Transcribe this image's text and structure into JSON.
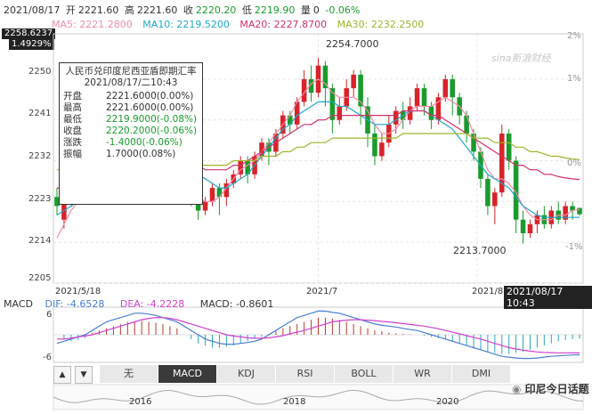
{
  "header": {
    "date": "2021/08/17",
    "open_label": "开",
    "open": "2221.60",
    "high_label": "高",
    "high": "2221.60",
    "close_label": "收",
    "close": "2220.20",
    "low_label": "低",
    "low": "2219.90",
    "vol_label": "量",
    "vol": "0",
    "change": "-0.06%"
  },
  "ma": [
    {
      "label": "MA5: 2221.2800",
      "color": "#f08ca8"
    },
    {
      "label": "MA10: 2219.5200",
      "color": "#1fa8c8"
    },
    {
      "label": "MA20: 2227.8700",
      "color": "#d0306a"
    },
    {
      "label": "MA30: 2232.2500",
      "color": "#9ab82a"
    }
  ],
  "price_badge": {
    "value": "2258.6237",
    "pct": "1.4929%"
  },
  "tooltip": {
    "title": "人民币兑印度尼西亚盾即期汇率",
    "datetime": "2021/08/17/二10:43",
    "rows": [
      {
        "k": "开盘",
        "v": "2221.6000(0.00%)",
        "color": "#333"
      },
      {
        "k": "最高",
        "v": "2221.6000(0.00%)",
        "color": "#333"
      },
      {
        "k": "最低",
        "v": "2219.9000(-0.08%)",
        "color": "#1a9b2c"
      },
      {
        "k": "收盘",
        "v": "2220.2000(-0.06%)",
        "color": "#1a9b2c"
      },
      {
        "k": "涨跌",
        "v": "-1.4000(-0.06%)",
        "color": "#1a9b2c"
      },
      {
        "k": "振幅",
        "v": "1.7000(0.08%)",
        "color": "#333"
      }
    ]
  },
  "annotations": {
    "high": "2254.7000",
    "low": "2213.7000"
  },
  "x_labels": {
    "left": "2021/5/18",
    "mid": "2021/7",
    "right": "2021/8"
  },
  "time_badge": "2021/08/17 10:43",
  "macd": {
    "title": "MACD",
    "dif": "DIF: -4.6528",
    "dea": "DEA: -4.2228",
    "macd": "MACD: -0.8601",
    "ticks": [
      "6",
      "-6"
    ]
  },
  "tabs": [
    "无",
    "MACD",
    "KDJ",
    "RSI",
    "BOLL",
    "WR",
    "DMI"
  ],
  "active_tab": "MACD",
  "nav_labels": [
    "2016",
    "2018",
    "2020"
  ],
  "watermark_logo": "sina新浪财经",
  "wechat_label": "印尼今日话题",
  "chart_data": {
    "type": "candlestick",
    "ylim": [
      2205,
      2260
    ],
    "y_ticks": [
      2205,
      2214,
      2223,
      2232,
      2241,
      2250
    ],
    "right_ticks": [
      "2%",
      "1%",
      "0%",
      "-1%"
    ],
    "candles": [
      [
        2224,
        2222,
        2226,
        2220
      ],
      [
        2219,
        2225,
        2227,
        2217
      ],
      [
        2225,
        2224,
        2226,
        2222
      ],
      [
        2224,
        2226,
        2227,
        2223
      ],
      [
        2226,
        2228,
        2229,
        2225
      ],
      [
        2228,
        2230,
        2231,
        2227
      ],
      [
        2230,
        2232,
        2233,
        2229
      ],
      [
        2232,
        2230,
        2233,
        2228
      ],
      [
        2230,
        2233,
        2234,
        2229
      ],
      [
        2233,
        2234,
        2235,
        2232
      ],
      [
        2234,
        2233,
        2236,
        2232
      ],
      [
        2233,
        2235,
        2236,
        2232
      ],
      [
        2235,
        2237,
        2238,
        2234
      ],
      [
        2237,
        2236,
        2238,
        2235
      ],
      [
        2236,
        2238,
        2239,
        2235
      ],
      [
        2238,
        2236,
        2239,
        2234
      ],
      [
        2236,
        2235,
        2237,
        2234
      ],
      [
        2235,
        2231,
        2236,
        2229
      ],
      [
        2231,
        2228,
        2232,
        2226
      ],
      [
        2228,
        2224,
        2229,
        2222
      ],
      [
        2224,
        2221,
        2225,
        2219
      ],
      [
        2221,
        2223,
        2224,
        2220
      ],
      [
        2223,
        2226,
        2227,
        2222
      ],
      [
        2226,
        2224,
        2227,
        2220
      ],
      [
        2224,
        2227,
        2228,
        2222
      ],
      [
        2227,
        2229,
        2230,
        2226
      ],
      [
        2229,
        2232,
        2233,
        2228
      ],
      [
        2232,
        2229,
        2233,
        2227
      ],
      [
        2229,
        2233,
        2234,
        2228
      ],
      [
        2233,
        2236,
        2237,
        2232
      ],
      [
        2236,
        2234,
        2237,
        2231
      ],
      [
        2234,
        2238,
        2239,
        2233
      ],
      [
        2238,
        2242,
        2243,
        2237
      ],
      [
        2242,
        2240,
        2243,
        2238
      ],
      [
        2240,
        2245,
        2246,
        2239
      ],
      [
        2245,
        2250,
        2252,
        2244
      ],
      [
        2250,
        2247,
        2253,
        2245
      ],
      [
        2247,
        2253,
        2254.7,
        2246
      ],
      [
        2253,
        2248,
        2254,
        2244
      ],
      [
        2248,
        2241,
        2249,
        2238
      ],
      [
        2241,
        2244,
        2246,
        2240
      ],
      [
        2244,
        2248,
        2250,
        2243
      ],
      [
        2248,
        2251,
        2252,
        2246
      ],
      [
        2251,
        2244,
        2252,
        2240
      ],
      [
        2244,
        2238,
        2246,
        2235
      ],
      [
        2238,
        2233,
        2240,
        2231
      ],
      [
        2233,
        2236,
        2238,
        2232
      ],
      [
        2236,
        2240,
        2242,
        2235
      ],
      [
        2240,
        2243,
        2244,
        2238
      ],
      [
        2243,
        2241,
        2245,
        2239
      ],
      [
        2241,
        2244,
        2246,
        2240
      ],
      [
        2244,
        2248,
        2249,
        2243
      ],
      [
        2248,
        2244,
        2249,
        2242
      ],
      [
        2244,
        2241,
        2245,
        2239
      ],
      [
        2241,
        2246,
        2247,
        2240
      ],
      [
        2246,
        2250,
        2251,
        2245
      ],
      [
        2250,
        2246,
        2251,
        2242
      ],
      [
        2246,
        2242,
        2247,
        2240
      ],
      [
        2242,
        2238,
        2243,
        2236
      ],
      [
        2238,
        2234,
        2239,
        2232
      ],
      [
        2234,
        2228,
        2235,
        2226
      ],
      [
        2228,
        2222,
        2229,
        2220
      ],
      [
        2222,
        2225,
        2226,
        2218
      ],
      [
        2225,
        2238,
        2240,
        2224
      ],
      [
        2238,
        2232,
        2239,
        2230
      ],
      [
        2232,
        2219,
        2233,
        2216
      ],
      [
        2219,
        2216,
        2221,
        2213.7
      ],
      [
        2216,
        2218,
        2219,
        2215
      ],
      [
        2218,
        2220,
        2221,
        2216
      ],
      [
        2220,
        2218,
        2222,
        2217
      ],
      [
        2218,
        2221,
        2222,
        2217
      ],
      [
        2221,
        2219,
        2223,
        2218
      ],
      [
        2219,
        2222,
        2223,
        2218
      ],
      [
        2222,
        2221,
        2223,
        2219
      ],
      [
        2221.6,
        2220.2,
        2221.6,
        2219.9
      ]
    ],
    "ma5": [
      2215,
      2218,
      2221,
      2223,
      2225,
      2227,
      2229,
      2230,
      2231,
      2232,
      2233,
      2234,
      2235,
      2236,
      2236,
      2236,
      2235,
      2233,
      2230,
      2227,
      2224,
      2223,
      2223,
      2224,
      2226,
      2228,
      2230,
      2231,
      2232,
      2234,
      2236,
      2238,
      2240,
      2242,
      2245,
      2247,
      2249,
      2250,
      2249,
      2247,
      2246,
      2246,
      2246,
      2245,
      2243,
      2240,
      2238,
      2238,
      2239,
      2241,
      2243,
      2244,
      2244,
      2244,
      2245,
      2246,
      2245,
      2244,
      2242,
      2238,
      2234,
      2230,
      2228,
      2228,
      2227,
      2225,
      2222,
      2220,
      2219,
      2219,
      2219,
      2220,
      2220,
      2221,
      2221.28
    ],
    "ma10": [
      2220,
      2221,
      2222,
      2223,
      2224,
      2225,
      2226,
      2227,
      2228,
      2229,
      2230,
      2231,
      2232,
      2233,
      2234,
      2234,
      2234,
      2234,
      2233,
      2231,
      2229,
      2228,
      2227,
      2226,
      2226,
      2227,
      2228,
      2229,
      2231,
      2233,
      2235,
      2237,
      2239,
      2240,
      2242,
      2243,
      2244,
      2245,
      2245,
      2245,
      2244,
      2244,
      2243,
      2242,
      2241,
      2240,
      2240,
      2240,
      2241,
      2242,
      2243,
      2243,
      2243,
      2242,
      2241,
      2240,
      2239,
      2237,
      2235,
      2233,
      2231,
      2229,
      2228,
      2227,
      2226,
      2224,
      2222,
      2221,
      2220,
      2219.5,
      2219.5,
      2219.5,
      2219.5,
      2219.5,
      2219.52
    ],
    "ma20": [
      2226,
      2226,
      2227,
      2227,
      2228,
      2228,
      2229,
      2229,
      2230,
      2230,
      2231,
      2231,
      2232,
      2232,
      2232,
      2232,
      2232,
      2232,
      2232,
      2231,
      2231,
      2230,
      2230,
      2230,
      2230,
      2231,
      2231,
      2232,
      2233,
      2234,
      2235,
      2236,
      2237,
      2238,
      2239,
      2240,
      2240,
      2241,
      2241,
      2242,
      2242,
      2242,
      2242,
      2242,
      2242,
      2242,
      2242,
      2242,
      2242,
      2243,
      2243,
      2243,
      2243,
      2242,
      2242,
      2241,
      2240,
      2239,
      2238,
      2237,
      2236,
      2235,
      2234,
      2233,
      2232,
      2231,
      2231,
      2230,
      2230,
      2229,
      2229,
      2228.5,
      2228.2,
      2228,
      2227.87
    ],
    "ma30": [
      2230,
      2230,
      2230,
      2230,
      2230,
      2230,
      2231,
      2231,
      2231,
      2231,
      2231,
      2231,
      2231,
      2231,
      2231,
      2231,
      2231,
      2231,
      2231,
      2231,
      2231,
      2231,
      2231,
      2231,
      2231,
      2232,
      2232,
      2232,
      2232,
      2233,
      2233,
      2233,
      2234,
      2234,
      2235,
      2235,
      2236,
      2236,
      2236,
      2237,
      2237,
      2237,
      2237,
      2237,
      2237,
      2237,
      2237,
      2237,
      2237,
      2238,
      2238,
      2238,
      2238,
      2238,
      2238,
      2238,
      2238,
      2238,
      2238,
      2237,
      2237,
      2237,
      2236,
      2236,
      2236,
      2235,
      2235,
      2234,
      2234,
      2233.5,
      2233,
      2233,
      2232.6,
      2232.4,
      2232.25
    ],
    "macd_ylim": [
      -6,
      6
    ],
    "macd_bars": [
      0,
      -1,
      -1.5,
      -1.2,
      -0.8,
      0.5,
      1,
      1.5,
      2,
      2.5,
      3,
      3,
      3.2,
      3,
      2.8,
      2.5,
      2,
      1.5,
      0,
      -1,
      -2,
      -2.5,
      -3,
      -3,
      -2.8,
      -2.5,
      -2,
      -1.5,
      -1,
      -0.5,
      0.2,
      0.8,
      1.5,
      2,
      2.5,
      3,
      3.5,
      4,
      4,
      3.8,
      3.5,
      3,
      2.5,
      2,
      1.5,
      1,
      0.8,
      0.5,
      0.3,
      0.2,
      0.1,
      0,
      -0.2,
      -0.5,
      -0.8,
      -1,
      -1.5,
      -2,
      -2.5,
      -3,
      -3.5,
      -4,
      -4.2,
      -4.5,
      -4.5,
      -4.2,
      -4,
      -3.5,
      -3,
      -2.5,
      -2,
      -1.5,
      -1.2,
      -1,
      -0.86
    ],
    "dif": [
      -2,
      -1.5,
      -1,
      -0.5,
      0,
      1,
      2,
      3,
      3.5,
      4,
      4.5,
      5,
      5,
      4.8,
      4.5,
      4,
      3.5,
      3,
      2,
      1,
      0,
      -1,
      -1.5,
      -2,
      -2.2,
      -2.2,
      -2,
      -1.8,
      -1.5,
      -1,
      0,
      1,
      2,
      3,
      4,
      4.5,
      5,
      5.5,
      5.5,
      5.2,
      5,
      4.5,
      4,
      3.5,
      3,
      2.5,
      2.2,
      2,
      1.8,
      1.5,
      1.2,
      1,
      0.5,
      0,
      -0.5,
      -1,
      -1.5,
      -2,
      -2.5,
      -3,
      -3.5,
      -4,
      -4.5,
      -5,
      -5.2,
      -5.4,
      -5.5,
      -5.5,
      -5.4,
      -5.2,
      -5,
      -4.9,
      -4.8,
      -4.7,
      -4.6528
    ],
    "dea": [
      -1,
      -1,
      -0.8,
      -0.5,
      -0.3,
      0,
      0.5,
      1,
      1.5,
      2,
      2.5,
      3,
      3.5,
      3.8,
      4,
      4,
      3.8,
      3.5,
      3,
      2.5,
      2,
      1.5,
      1,
      0.5,
      0,
      -0.3,
      -0.5,
      -0.7,
      -0.8,
      -0.8,
      -0.7,
      -0.5,
      -0.2,
      0.2,
      0.6,
      1,
      1.5,
      2,
      2.5,
      3,
      3.2,
      3.4,
      3.5,
      3.5,
      3.4,
      3.3,
      3.1,
      3,
      2.8,
      2.6,
      2.4,
      2.2,
      2,
      1.7,
      1.4,
      1,
      0.6,
      0.2,
      -0.2,
      -0.6,
      -1,
      -1.5,
      -2,
      -2.5,
      -3,
      -3.3,
      -3.6,
      -3.8,
      -4,
      -4.1,
      -4.15,
      -4.2,
      -4.2,
      -4.22,
      -4.2228
    ]
  }
}
